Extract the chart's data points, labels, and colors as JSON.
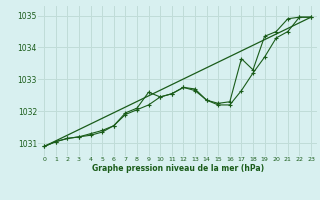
{
  "title": "Graphe pression niveau de la mer (hPa)",
  "bg_color": "#d8f0f0",
  "grid_color": "#c0dcd8",
  "line_color": "#1a5c1a",
  "xlim": [
    -0.5,
    23.5
  ],
  "ylim": [
    1030.6,
    1035.3
  ],
  "yticks": [
    1031,
    1032,
    1033,
    1034,
    1035
  ],
  "xticks": [
    0,
    1,
    2,
    3,
    4,
    5,
    6,
    7,
    8,
    9,
    10,
    11,
    12,
    13,
    14,
    15,
    16,
    17,
    18,
    19,
    20,
    21,
    22,
    23
  ],
  "series_marker1_x": [
    0,
    1,
    2,
    3,
    4,
    5,
    6,
    7,
    8,
    9,
    10,
    11,
    12,
    13,
    14,
    15,
    16,
    17,
    18,
    19,
    20,
    21,
    22,
    23
  ],
  "series_marker1_y": [
    1030.9,
    1031.05,
    1031.15,
    1031.2,
    1031.3,
    1031.4,
    1031.55,
    1031.95,
    1032.1,
    1032.6,
    1032.45,
    1032.55,
    1032.75,
    1032.65,
    1032.35,
    1032.2,
    1032.2,
    1032.65,
    1033.2,
    1033.7,
    1034.3,
    1034.5,
    1034.95,
    1034.95
  ],
  "series_marker2_x": [
    0,
    1,
    2,
    3,
    4,
    5,
    6,
    7,
    8,
    9,
    10,
    11,
    12,
    13,
    14,
    15,
    16,
    17,
    18,
    19,
    20,
    21,
    22,
    23
  ],
  "series_marker2_y": [
    1030.9,
    1031.05,
    1031.15,
    1031.2,
    1031.25,
    1031.35,
    1031.55,
    1031.9,
    1032.05,
    1032.2,
    1032.45,
    1032.55,
    1032.75,
    1032.7,
    1032.35,
    1032.25,
    1032.3,
    1033.65,
    1033.3,
    1034.35,
    1034.5,
    1034.9,
    1034.95,
    1034.95
  ],
  "series_line1_x": [
    0,
    23
  ],
  "series_line1_y": [
    1030.9,
    1034.95
  ]
}
